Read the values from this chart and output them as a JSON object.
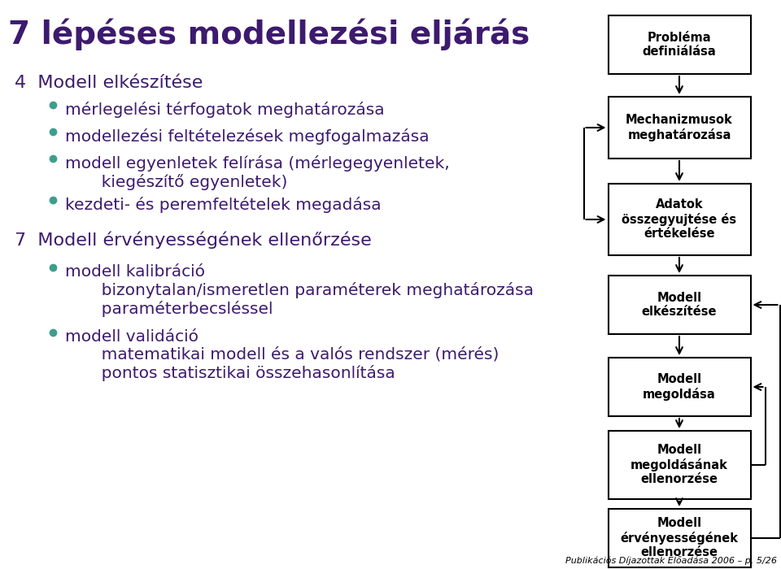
{
  "title": "7 lépéses modellezési eljárás",
  "title_color": "#3d1a6e",
  "title_fontsize": 28,
  "bg_color": "#ffffff",
  "left_text_color": "#3d1a6e",
  "bullet_color": "#3d9e8c",
  "box_text_color": "#000000",
  "box_bg_color": "#ffffff",
  "box_edge_color": "#000000",
  "arrow_color": "#000000",
  "footer": "Publikációs Díjazottak Előadása 2006 – p. 5/26",
  "section4_header": "4  Modell elkészítése",
  "section4_bullets": [
    "mérlegelési térfogatok meghatározása",
    "modellezési feltételezések megfogalmazása",
    "modell egyenletek felírása (mérlegegyenletek,\n       kiegészítő egyenletek)",
    "kezdeti- és peremfeltételek megadása"
  ],
  "section7_header": "7  Modell érvényességének ellenőrzése",
  "section7_bullets": [
    "modell kalibráció\n       bizonytalan/ismeretlen paraméterek meghatározása\n       paraméterbecsléssel",
    "modell validáció\n       matematikai modell és a valós rendszer (mérés)\n       pontos statisztikai összehasonlítása"
  ],
  "flowchart_boxes": [
    "Probléma\ndefiniálása",
    "Mechanizmusok\nmeghatározása",
    "Adatok\nösszegyujtése és\nértékelése",
    "Modell\nelkészítése",
    "Modell\nmegoldása",
    "Modell\nmegoldásának\nellenorzése",
    "Modell\nérvényességének\nellenorzése"
  ]
}
